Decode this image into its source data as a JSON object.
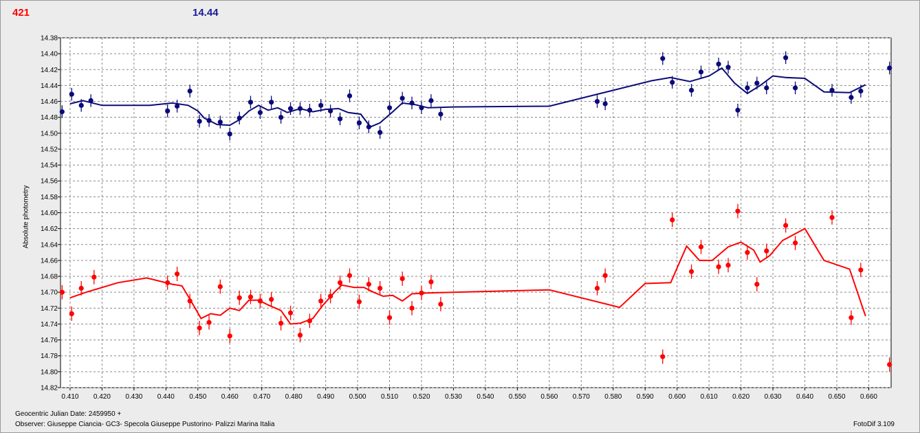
{
  "header": {
    "count": "421",
    "mean_mag": "14.44"
  },
  "footer": {
    "julian_date": "Geocentric Julian Date: 2459950 +",
    "observer": "Observer: Giuseppe Ciancia- GC3- Specola Giuseppe Pustorino- Palizzi Marina Italia",
    "software": "FotoDif 3.109"
  },
  "colors": {
    "blue": "#0a0a7a",
    "red": "#ff0000",
    "grid": "#888888",
    "background": "#ffffff"
  },
  "chart_data": {
    "type": "scatter",
    "ylabel": "Absolute photometry",
    "xlim": [
      0.407,
      0.667
    ],
    "ylim": [
      14.38,
      14.82
    ],
    "y_inverted": true,
    "grid": true,
    "xticks": [
      "0.410",
      "0.420",
      "0.430",
      "0.440",
      "0.450",
      "0.460",
      "0.470",
      "0.480",
      "0.490",
      "0.500",
      "0.510",
      "0.520",
      "0.530",
      "0.540",
      "0.550",
      "0.560",
      "0.570",
      "0.580",
      "0.590",
      "0.600",
      "0.610",
      "0.620",
      "0.630",
      "0.640",
      "0.650",
      "0.660"
    ],
    "yticks": [
      "14.38",
      "14.40",
      "14.42",
      "14.44",
      "14.46",
      "14.48",
      "14.50",
      "14.52",
      "14.54",
      "14.56",
      "14.58",
      "14.60",
      "14.62",
      "14.64",
      "14.66",
      "14.68",
      "14.70",
      "14.72",
      "14.74",
      "14.76",
      "14.78",
      "14.80",
      "14.82"
    ],
    "series": [
      {
        "color": "#0a0a7a",
        "error": 0.008,
        "points": [
          [
            0.4075,
            14.473
          ],
          [
            0.4105,
            14.451
          ],
          [
            0.4135,
            14.465
          ],
          [
            0.4165,
            14.459
          ],
          [
            0.4405,
            14.472
          ],
          [
            0.4435,
            14.466
          ],
          [
            0.4475,
            14.447
          ],
          [
            0.4505,
            14.485
          ],
          [
            0.4535,
            14.484
          ],
          [
            0.457,
            14.486
          ],
          [
            0.46,
            14.501
          ],
          [
            0.463,
            14.481
          ],
          [
            0.4665,
            14.461
          ],
          [
            0.4695,
            14.474
          ],
          [
            0.473,
            14.461
          ],
          [
            0.476,
            14.48
          ],
          [
            0.479,
            14.469
          ],
          [
            0.482,
            14.469
          ],
          [
            0.485,
            14.471
          ],
          [
            0.4885,
            14.465
          ],
          [
            0.4915,
            14.472
          ],
          [
            0.4945,
            14.482
          ],
          [
            0.4975,
            14.453
          ],
          [
            0.5005,
            14.487
          ],
          [
            0.5035,
            14.492
          ],
          [
            0.507,
            14.499
          ],
          [
            0.51,
            14.468
          ],
          [
            0.514,
            14.456
          ],
          [
            0.517,
            14.462
          ],
          [
            0.52,
            14.468
          ],
          [
            0.523,
            14.459
          ],
          [
            0.526,
            14.476
          ],
          [
            0.575,
            14.46
          ],
          [
            0.5775,
            14.463
          ],
          [
            0.5955,
            14.406
          ],
          [
            0.5985,
            14.436
          ],
          [
            0.6045,
            14.446
          ],
          [
            0.6075,
            14.423
          ],
          [
            0.613,
            14.413
          ],
          [
            0.616,
            14.417
          ],
          [
            0.619,
            14.471
          ],
          [
            0.622,
            14.443
          ],
          [
            0.625,
            14.437
          ],
          [
            0.628,
            14.443
          ],
          [
            0.634,
            14.405
          ],
          [
            0.637,
            14.443
          ],
          [
            0.6485,
            14.446
          ],
          [
            0.6545,
            14.455
          ],
          [
            0.6575,
            14.447
          ],
          [
            0.6665,
            14.418
          ]
        ],
        "curve": [
          [
            0.41,
            14.463
          ],
          [
            0.414,
            14.459
          ],
          [
            0.42,
            14.465
          ],
          [
            0.425,
            14.465
          ],
          [
            0.435,
            14.465
          ],
          [
            0.442,
            14.462
          ],
          [
            0.447,
            14.465
          ],
          [
            0.45,
            14.472
          ],
          [
            0.452,
            14.481
          ],
          [
            0.456,
            14.489
          ],
          [
            0.46,
            14.49
          ],
          [
            0.463,
            14.483
          ],
          [
            0.466,
            14.472
          ],
          [
            0.469,
            14.465
          ],
          [
            0.472,
            14.471
          ],
          [
            0.475,
            14.468
          ],
          [
            0.478,
            14.474
          ],
          [
            0.482,
            14.469
          ],
          [
            0.486,
            14.473
          ],
          [
            0.49,
            14.47
          ],
          [
            0.494,
            14.469
          ],
          [
            0.497,
            14.474
          ],
          [
            0.501,
            14.476
          ],
          [
            0.504,
            14.492
          ],
          [
            0.507,
            14.487
          ],
          [
            0.511,
            14.473
          ],
          [
            0.514,
            14.462
          ],
          [
            0.518,
            14.464
          ],
          [
            0.522,
            14.468
          ],
          [
            0.53,
            14.467
          ],
          [
            0.56,
            14.466
          ],
          [
            0.575,
            14.451
          ],
          [
            0.592,
            14.434
          ],
          [
            0.598,
            14.43
          ],
          [
            0.604,
            14.435
          ],
          [
            0.61,
            14.428
          ],
          [
            0.614,
            14.418
          ],
          [
            0.618,
            14.437
          ],
          [
            0.622,
            14.45
          ],
          [
            0.626,
            14.44
          ],
          [
            0.63,
            14.428
          ],
          [
            0.634,
            14.43
          ],
          [
            0.64,
            14.431
          ],
          [
            0.646,
            14.448
          ],
          [
            0.654,
            14.449
          ],
          [
            0.659,
            14.439
          ]
        ]
      },
      {
        "color": "#ff0000",
        "error": 0.009,
        "points": [
          [
            0.4075,
            14.7
          ],
          [
            0.4105,
            14.727
          ],
          [
            0.4135,
            14.695
          ],
          [
            0.4175,
            14.681
          ],
          [
            0.4405,
            14.688
          ],
          [
            0.4435,
            14.677
          ],
          [
            0.4475,
            14.711
          ],
          [
            0.4505,
            14.745
          ],
          [
            0.4535,
            14.738
          ],
          [
            0.457,
            14.693
          ],
          [
            0.46,
            14.755
          ],
          [
            0.463,
            14.707
          ],
          [
            0.4665,
            14.706
          ],
          [
            0.4695,
            14.711
          ],
          [
            0.473,
            14.709
          ],
          [
            0.476,
            14.739
          ],
          [
            0.479,
            14.726
          ],
          [
            0.482,
            14.754
          ],
          [
            0.485,
            14.736
          ],
          [
            0.4885,
            14.711
          ],
          [
            0.4915,
            14.705
          ],
          [
            0.4945,
            14.688
          ],
          [
            0.4975,
            14.679
          ],
          [
            0.5005,
            14.712
          ],
          [
            0.5035,
            14.69
          ],
          [
            0.507,
            14.695
          ],
          [
            0.51,
            14.732
          ],
          [
            0.514,
            14.683
          ],
          [
            0.517,
            14.72
          ],
          [
            0.52,
            14.701
          ],
          [
            0.523,
            14.687
          ],
          [
            0.526,
            14.715
          ],
          [
            0.575,
            14.695
          ],
          [
            0.5775,
            14.679
          ],
          [
            0.5955,
            14.781
          ],
          [
            0.5985,
            14.609
          ],
          [
            0.6045,
            14.674
          ],
          [
            0.6075,
            14.643
          ],
          [
            0.613,
            14.668
          ],
          [
            0.616,
            14.666
          ],
          [
            0.619,
            14.598
          ],
          [
            0.622,
            14.65
          ],
          [
            0.625,
            14.69
          ],
          [
            0.628,
            14.648
          ],
          [
            0.634,
            14.616
          ],
          [
            0.637,
            14.638
          ],
          [
            0.6485,
            14.606
          ],
          [
            0.6545,
            14.732
          ],
          [
            0.6575,
            14.672
          ],
          [
            0.6665,
            14.791
          ]
        ],
        "curve": [
          [
            0.41,
            14.707
          ],
          [
            0.415,
            14.7
          ],
          [
            0.425,
            14.688
          ],
          [
            0.434,
            14.682
          ],
          [
            0.442,
            14.69
          ],
          [
            0.445,
            14.692
          ],
          [
            0.448,
            14.712
          ],
          [
            0.451,
            14.733
          ],
          [
            0.454,
            14.727
          ],
          [
            0.457,
            14.729
          ],
          [
            0.46,
            14.72
          ],
          [
            0.463,
            14.723
          ],
          [
            0.466,
            14.71
          ],
          [
            0.469,
            14.71
          ],
          [
            0.472,
            14.716
          ],
          [
            0.476,
            14.723
          ],
          [
            0.479,
            14.74
          ],
          [
            0.482,
            14.739
          ],
          [
            0.486,
            14.733
          ],
          [
            0.489,
            14.717
          ],
          [
            0.493,
            14.699
          ],
          [
            0.495,
            14.691
          ],
          [
            0.499,
            14.694
          ],
          [
            0.502,
            14.694
          ],
          [
            0.505,
            14.7
          ],
          [
            0.508,
            14.705
          ],
          [
            0.511,
            14.704
          ],
          [
            0.514,
            14.711
          ],
          [
            0.517,
            14.702
          ],
          [
            0.522,
            14.701
          ],
          [
            0.53,
            14.7
          ],
          [
            0.56,
            14.697
          ],
          [
            0.582,
            14.719
          ],
          [
            0.59,
            14.689
          ],
          [
            0.598,
            14.688
          ],
          [
            0.603,
            14.642
          ],
          [
            0.607,
            14.66
          ],
          [
            0.611,
            14.66
          ],
          [
            0.616,
            14.643
          ],
          [
            0.62,
            14.637
          ],
          [
            0.624,
            14.647
          ],
          [
            0.626,
            14.662
          ],
          [
            0.629,
            14.654
          ],
          [
            0.633,
            14.635
          ],
          [
            0.64,
            14.62
          ],
          [
            0.646,
            14.66
          ],
          [
            0.654,
            14.671
          ],
          [
            0.659,
            14.73
          ]
        ]
      }
    ]
  }
}
